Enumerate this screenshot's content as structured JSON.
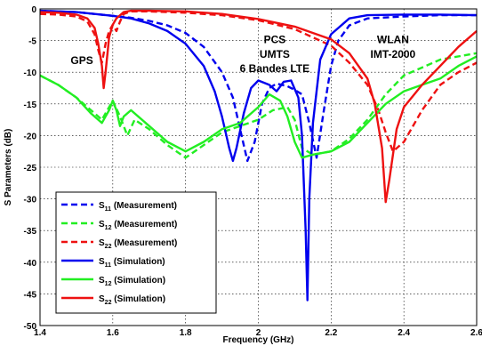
{
  "chart_data": {
    "type": "line",
    "xlabel": "Frequency (GHz)",
    "ylabel": "S Parameters (dB)",
    "xlim": [
      1.4,
      2.6
    ],
    "ylim": [
      -50,
      0
    ],
    "grid": true,
    "legend": "bottom-left",
    "xticks": [
      "1.4",
      "1.6",
      "1.8",
      "2",
      "2.2",
      "2.4",
      "2.6"
    ],
    "yticks": [
      "0",
      "-5",
      "-10",
      "-15",
      "-20",
      "-25",
      "-30",
      "-35",
      "-40",
      "-45",
      "-50"
    ],
    "annotations": [
      {
        "text": "GPS",
        "x": 1.515,
        "y": -8.7
      },
      {
        "text": "PCS",
        "x": 2.045,
        "y": -5.4
      },
      {
        "text": "UMTS",
        "x": 2.045,
        "y": -7.7
      },
      {
        "text": "6 Bandes LTE",
        "x": 2.045,
        "y": -10.0
      },
      {
        "text": "WLAN",
        "x": 2.37,
        "y": -5.4
      },
      {
        "text": "IMT-2000",
        "x": 2.37,
        "y": -7.7
      }
    ],
    "series": [
      {
        "name": "S11 (Measurement)",
        "label_main": "S",
        "label_sub": "11",
        "label_tail": " (Measurement)",
        "color": "#0000ee",
        "dash": true,
        "x": [
          1.4,
          1.5,
          1.55,
          1.6,
          1.65,
          1.7,
          1.75,
          1.8,
          1.85,
          1.9,
          1.93,
          1.95,
          1.97,
          1.99,
          2.01,
          2.03,
          2.05,
          2.08,
          2.1,
          2.12,
          2.14,
          2.16,
          2.18,
          2.2,
          2.22,
          2.25,
          2.3,
          2.4,
          2.5,
          2.6
        ],
        "y": [
          -0.3,
          -0.5,
          -0.8,
          -1.1,
          -1.4,
          -1.9,
          -2.6,
          -3.8,
          -6.0,
          -10.0,
          -14.0,
          -19.0,
          -24.0,
          -21.0,
          -15.0,
          -12.5,
          -11.8,
          -12.2,
          -12.8,
          -13.5,
          -18.0,
          -23.5,
          -16.0,
          -9.0,
          -5.0,
          -2.6,
          -1.5,
          -1.2,
          -1.0,
          -1.0
        ]
      },
      {
        "name": "S12 (Measurement)",
        "label_main": "S",
        "label_sub": "12",
        "label_tail": " (Measurement)",
        "color": "#22ee22",
        "dash": true,
        "x": [
          1.4,
          1.45,
          1.5,
          1.54,
          1.57,
          1.6,
          1.62,
          1.64,
          1.66,
          1.7,
          1.75,
          1.8,
          1.85,
          1.9,
          1.95,
          2.0,
          2.04,
          2.08,
          2.1,
          2.12,
          2.15,
          2.2,
          2.25,
          2.3,
          2.35,
          2.4,
          2.5,
          2.6
        ],
        "y": [
          -10.5,
          -12.0,
          -14.0,
          -16.0,
          -17.5,
          -14.5,
          -17.0,
          -20.0,
          -17.5,
          -19.0,
          -21.5,
          -23.5,
          -21.5,
          -19.5,
          -18.5,
          -17.5,
          -16.0,
          -15.5,
          -17.5,
          -22.0,
          -23.0,
          -22.5,
          -20.5,
          -17.5,
          -13.5,
          -10.5,
          -8.0,
          -7.0
        ]
      },
      {
        "name": "S22 (Measurement)",
        "label_main": "S",
        "label_sub": "22",
        "label_tail": " (Measurement)",
        "color": "#ee1111",
        "dash": true,
        "x": [
          1.4,
          1.45,
          1.5,
          1.53,
          1.55,
          1.56,
          1.57,
          1.58,
          1.59,
          1.6,
          1.61,
          1.62,
          1.63,
          1.65,
          1.7,
          1.8,
          1.9,
          2.0,
          2.1,
          2.2,
          2.25,
          2.3,
          2.33,
          2.35,
          2.37,
          2.4,
          2.45,
          2.5,
          2.55,
          2.6
        ],
        "y": [
          -0.8,
          -0.9,
          -1.2,
          -2.0,
          -4.0,
          -6.5,
          -8.5,
          -5.5,
          -3.5,
          -2.5,
          -3.5,
          -2.0,
          -0.8,
          -0.4,
          -0.4,
          -0.6,
          -1.0,
          -1.8,
          -3.2,
          -5.8,
          -8.5,
          -12.0,
          -16.0,
          -19.5,
          -22.5,
          -21.0,
          -16.0,
          -12.0,
          -10.0,
          -8.5
        ]
      },
      {
        "name": "S11 (Simulation)",
        "label_main": "S",
        "label_sub": "11",
        "label_tail": " (Simulation)",
        "color": "#0000ee",
        "dash": false,
        "x": [
          1.4,
          1.5,
          1.55,
          1.6,
          1.65,
          1.7,
          1.75,
          1.8,
          1.85,
          1.88,
          1.9,
          1.92,
          1.93,
          1.94,
          1.96,
          1.98,
          2.0,
          2.03,
          2.05,
          2.07,
          2.09,
          2.11,
          2.12,
          2.13,
          2.135,
          2.14,
          2.15,
          2.17,
          2.2,
          2.25,
          2.3,
          2.4,
          2.5,
          2.6
        ],
        "y": [
          -0.3,
          -0.5,
          -0.8,
          -1.1,
          -1.5,
          -2.3,
          -3.5,
          -5.5,
          -9.0,
          -13.0,
          -17.0,
          -22.0,
          -24.0,
          -22.0,
          -16.5,
          -12.5,
          -11.3,
          -12.0,
          -13.0,
          -11.5,
          -11.3,
          -14.0,
          -20.0,
          -35.0,
          -46.0,
          -30.0,
          -18.0,
          -8.0,
          -4.0,
          -1.5,
          -1.0,
          -0.9,
          -0.9,
          -1.0
        ]
      },
      {
        "name": "S12 (Simulation)",
        "label_main": "S",
        "label_sub": "12",
        "label_tail": " (Simulation)",
        "color": "#22ee22",
        "dash": false,
        "x": [
          1.4,
          1.45,
          1.5,
          1.54,
          1.57,
          1.59,
          1.6,
          1.61,
          1.62,
          1.63,
          1.65,
          1.7,
          1.75,
          1.8,
          1.85,
          1.9,
          1.95,
          2.0,
          2.03,
          2.06,
          2.08,
          2.1,
          2.12,
          2.15,
          2.2,
          2.25,
          2.3,
          2.35,
          2.4,
          2.45,
          2.5,
          2.55,
          2.6
        ],
        "y": [
          -10.5,
          -12.0,
          -14.0,
          -16.5,
          -18.0,
          -16.0,
          -14.5,
          -16.0,
          -18.5,
          -17.0,
          -16.0,
          -18.5,
          -21.0,
          -22.5,
          -21.0,
          -19.0,
          -18.0,
          -15.5,
          -13.5,
          -14.5,
          -17.0,
          -21.0,
          -23.5,
          -23.0,
          -22.5,
          -21.0,
          -18.0,
          -15.0,
          -13.0,
          -12.0,
          -11.0,
          -9.0,
          -7.5
        ]
      },
      {
        "name": "S22 (Simulation)",
        "label_main": "S",
        "label_sub": "22",
        "label_tail": " (Simulation)",
        "color": "#ee1111",
        "dash": false,
        "x": [
          1.4,
          1.45,
          1.5,
          1.53,
          1.55,
          1.56,
          1.57,
          1.575,
          1.58,
          1.59,
          1.6,
          1.61,
          1.62,
          1.63,
          1.65,
          1.7,
          1.8,
          1.9,
          2.0,
          2.1,
          2.2,
          2.25,
          2.3,
          2.32,
          2.34,
          2.35,
          2.36,
          2.38,
          2.4,
          2.45,
          2.5,
          2.55,
          2.6
        ],
        "y": [
          -0.5,
          -0.6,
          -0.9,
          -1.5,
          -3.0,
          -5.5,
          -9.0,
          -12.5,
          -10.0,
          -4.5,
          -2.5,
          -1.5,
          -1.0,
          -0.5,
          -0.3,
          -0.3,
          -0.4,
          -0.8,
          -1.6,
          -2.8,
          -4.8,
          -7.0,
          -11.0,
          -15.0,
          -22.0,
          -30.5,
          -27.0,
          -19.0,
          -15.5,
          -12.0,
          -9.0,
          -6.0,
          -3.5
        ]
      }
    ]
  }
}
